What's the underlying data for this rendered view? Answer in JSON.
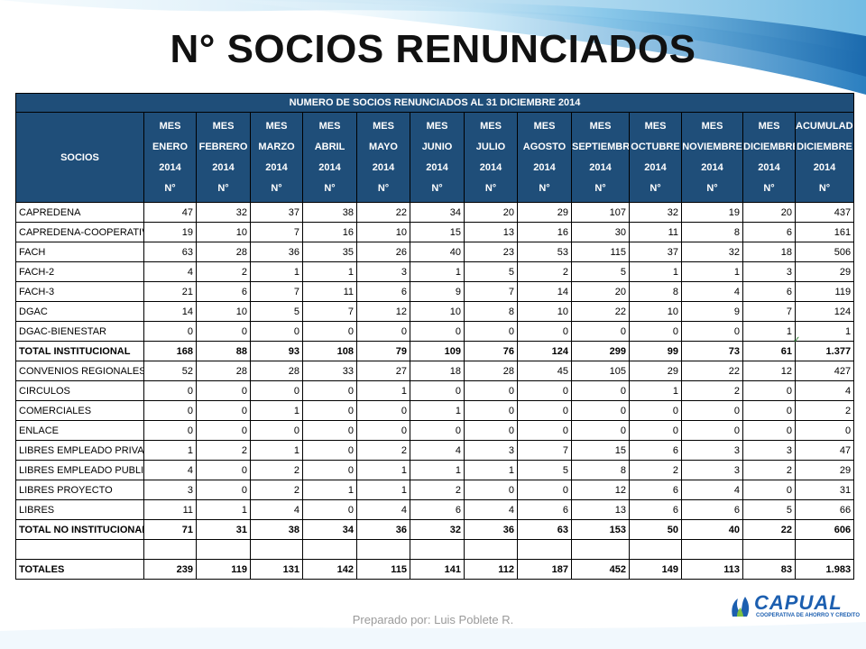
{
  "slide": {
    "title": "N° SOCIOS RENUNCIADOS",
    "footer": "Preparado por: Luis Poblete R."
  },
  "logo": {
    "name": "CAPUAL",
    "tagline": "COOPERATIVA DE AHORRO Y CREDITO"
  },
  "colors": {
    "header_bg": "#1f4e79",
    "header_text": "#ffffff",
    "accent_blue": "#1c5fb0"
  },
  "table": {
    "title": "NUMERO DE SOCIOS RENUNCIADOS AL 31 DICIEMBRE 2014",
    "socios_header": "SOCIOS",
    "columns": [
      [
        "MES",
        "ENERO",
        "2014",
        "N°"
      ],
      [
        "MES",
        "FEBRERO",
        "2014",
        "N°"
      ],
      [
        "MES",
        "MARZO",
        "2014",
        "N°"
      ],
      [
        "MES",
        "ABRIL",
        "2014",
        "N°"
      ],
      [
        "MES",
        "MAYO",
        "2014",
        "N°"
      ],
      [
        "MES",
        "JUNIO",
        "2014",
        "N°"
      ],
      [
        "MES",
        "JULIO",
        "2014",
        "N°"
      ],
      [
        "MES",
        "AGOSTO",
        "2014",
        "N°"
      ],
      [
        "MES",
        "SEPTIEMBRE",
        "2014",
        "N°"
      ],
      [
        "MES",
        "OCTUBRE",
        "2014",
        "N°"
      ],
      [
        "MES",
        "NOVIEMBRE",
        "2014",
        "N°"
      ],
      [
        "MES",
        "DICIEMBRE",
        "2014",
        "N°"
      ],
      [
        "ACUMULADO",
        "DICIEMBRE",
        "2014",
        "N°"
      ]
    ],
    "rows": [
      {
        "name": "CAPREDENA",
        "values": [
          "47",
          "32",
          "37",
          "38",
          "22",
          "34",
          "20",
          "29",
          "107",
          "32",
          "19",
          "20",
          "437"
        ]
      },
      {
        "name": "CAPREDENA-COOPERATIVA",
        "values": [
          "19",
          "10",
          "7",
          "16",
          "10",
          "15",
          "13",
          "16",
          "30",
          "11",
          "8",
          "6",
          "161"
        ]
      },
      {
        "name": "FACH",
        "values": [
          "63",
          "28",
          "36",
          "35",
          "26",
          "40",
          "23",
          "53",
          "115",
          "37",
          "32",
          "18",
          "506"
        ]
      },
      {
        "name": "FACH-2",
        "values": [
          "4",
          "2",
          "1",
          "1",
          "3",
          "1",
          "5",
          "2",
          "5",
          "1",
          "1",
          "3",
          "29"
        ]
      },
      {
        "name": "FACH-3",
        "values": [
          "21",
          "6",
          "7",
          "11",
          "6",
          "9",
          "7",
          "14",
          "20",
          "8",
          "4",
          "6",
          "119"
        ]
      },
      {
        "name": "DGAC",
        "values": [
          "14",
          "10",
          "5",
          "7",
          "12",
          "10",
          "8",
          "10",
          "22",
          "10",
          "9",
          "7",
          "124"
        ]
      },
      {
        "name": "DGAC-BIENESTAR",
        "values": [
          "0",
          "0",
          "0",
          "0",
          "0",
          "0",
          "0",
          "0",
          "0",
          "0",
          "0",
          "1",
          "1"
        ]
      },
      {
        "name": "TOTAL INSTITUCIONAL",
        "total": true,
        "values": [
          "168",
          "88",
          "93",
          "108",
          "79",
          "109",
          "76",
          "124",
          "299",
          "99",
          "73",
          "61",
          "1.377"
        ]
      },
      {
        "name": "CONVENIOS REGIONALES",
        "values": [
          "52",
          "28",
          "28",
          "33",
          "27",
          "18",
          "28",
          "45",
          "105",
          "29",
          "22",
          "12",
          "427"
        ]
      },
      {
        "name": "CIRCULOS",
        "values": [
          "0",
          "0",
          "0",
          "0",
          "1",
          "0",
          "0",
          "0",
          "0",
          "1",
          "2",
          "0",
          "4"
        ]
      },
      {
        "name": "COMERCIALES",
        "values": [
          "0",
          "0",
          "1",
          "0",
          "0",
          "1",
          "0",
          "0",
          "0",
          "0",
          "0",
          "0",
          "2"
        ]
      },
      {
        "name": "ENLACE",
        "values": [
          "0",
          "0",
          "0",
          "0",
          "0",
          "0",
          "0",
          "0",
          "0",
          "0",
          "0",
          "0",
          "0"
        ]
      },
      {
        "name": "LIBRES EMPLEADO PRIVADO",
        "values": [
          "1",
          "2",
          "1",
          "0",
          "2",
          "4",
          "3",
          "7",
          "15",
          "6",
          "3",
          "3",
          "47"
        ]
      },
      {
        "name": "LIBRES EMPLEADO PUBLICO",
        "values": [
          "4",
          "0",
          "2",
          "0",
          "1",
          "1",
          "1",
          "5",
          "8",
          "2",
          "3",
          "2",
          "29"
        ]
      },
      {
        "name": "LIBRES PROYECTO",
        "values": [
          "3",
          "0",
          "2",
          "1",
          "1",
          "2",
          "0",
          "0",
          "12",
          "6",
          "4",
          "0",
          "31"
        ]
      },
      {
        "name": "LIBRES",
        "values": [
          "11",
          "1",
          "4",
          "0",
          "4",
          "6",
          "4",
          "6",
          "13",
          "6",
          "6",
          "5",
          "66"
        ]
      },
      {
        "name": "TOTAL NO INSTITUCIONAL",
        "total": true,
        "values": [
          "71",
          "31",
          "38",
          "34",
          "36",
          "32",
          "36",
          "63",
          "153",
          "50",
          "40",
          "22",
          "606"
        ]
      },
      {
        "name": "",
        "blank": true,
        "values": [
          "",
          "",
          "",
          "",
          "",
          "",
          "",
          "",
          "",
          "",
          "",
          "",
          ""
        ]
      },
      {
        "name": "TOTALES",
        "total": true,
        "values": [
          "239",
          "119",
          "131",
          "142",
          "115",
          "141",
          "112",
          "187",
          "452",
          "149",
          "113",
          "83",
          "1.983"
        ]
      }
    ]
  }
}
